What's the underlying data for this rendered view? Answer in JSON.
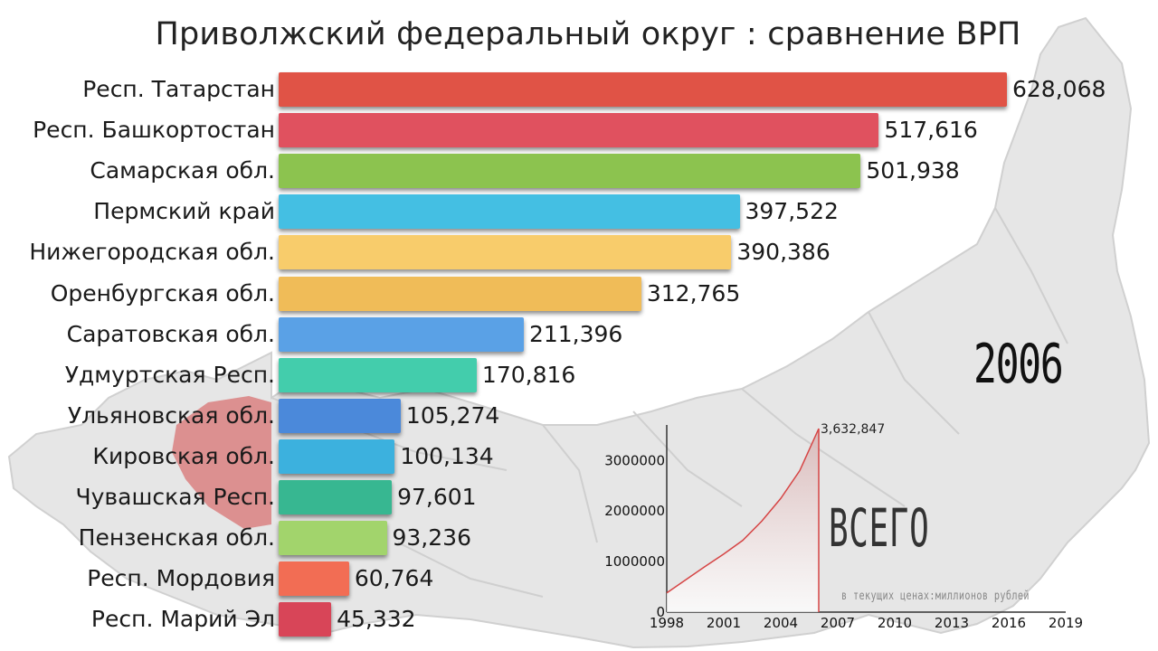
{
  "title": "Приволжский федеральный округ : сравнение ВРП",
  "year": "2006",
  "total": {
    "label": "ВСЕГО",
    "note": "в текущих ценах:миллионов рублей"
  },
  "colors": {
    "map": "#e6e6e6",
    "map_border": "#d0d0d0",
    "map_highlight": "#dc9090",
    "area_fill": "#d8b8b8",
    "line": "#d64545"
  },
  "chart_data": [
    {
      "type": "bar",
      "orientation": "horizontal",
      "title": "Приволжский федеральный округ : сравнение ВРП",
      "categories": [
        "Респ. Татарстан",
        "Респ. Башкортостан",
        "Самарская обл.",
        "Пермский край",
        "Нижегородская обл.",
        "Оренбургская обл.",
        "Саратовская обл.",
        "Удмуртская Респ.",
        "Ульяновская обл.",
        "Кировская обл.",
        "Чувашская Респ.",
        "Пензенская обл.",
        "Респ. Мордовия",
        "Респ. Марий Эл"
      ],
      "values": [
        628068,
        517616,
        501938,
        397522,
        390386,
        312765,
        211396,
        170816,
        105274,
        100134,
        97601,
        93236,
        60764,
        45332
      ],
      "value_labels": [
        "628,068",
        "517,616",
        "501,938",
        "397,522",
        "390,386",
        "312,765",
        "211,396",
        "170,816",
        "105,274",
        "100,134",
        "97,601",
        "93,236",
        "60,764",
        "45,332"
      ],
      "colors": [
        "#e05346",
        "#e0515f",
        "#8cc34f",
        "#44bfe3",
        "#f8cc6b",
        "#f0bc58",
        "#5aa1e6",
        "#43cdac",
        "#4b89da",
        "#3cb1de",
        "#37b791",
        "#a2d46c",
        "#f26d54",
        "#d84558"
      ]
    },
    {
      "type": "area",
      "title": "",
      "x": [
        1998,
        1999,
        2000,
        2001,
        2002,
        2003,
        2004,
        2005,
        2006
      ],
      "y": [
        380000,
        640000,
        900000,
        1150000,
        1420000,
        1800000,
        2250000,
        2800000,
        3632847
      ],
      "end_label": "3,632,847",
      "xticks": [
        "1998",
        "2001",
        "2004",
        "2007",
        "2010",
        "2013",
        "2016",
        "2019"
      ],
      "yticks": [
        "0",
        "1000000",
        "2000000",
        "3000000"
      ],
      "xlim": [
        1998,
        2019
      ],
      "ylim": [
        0,
        3632847
      ]
    }
  ]
}
